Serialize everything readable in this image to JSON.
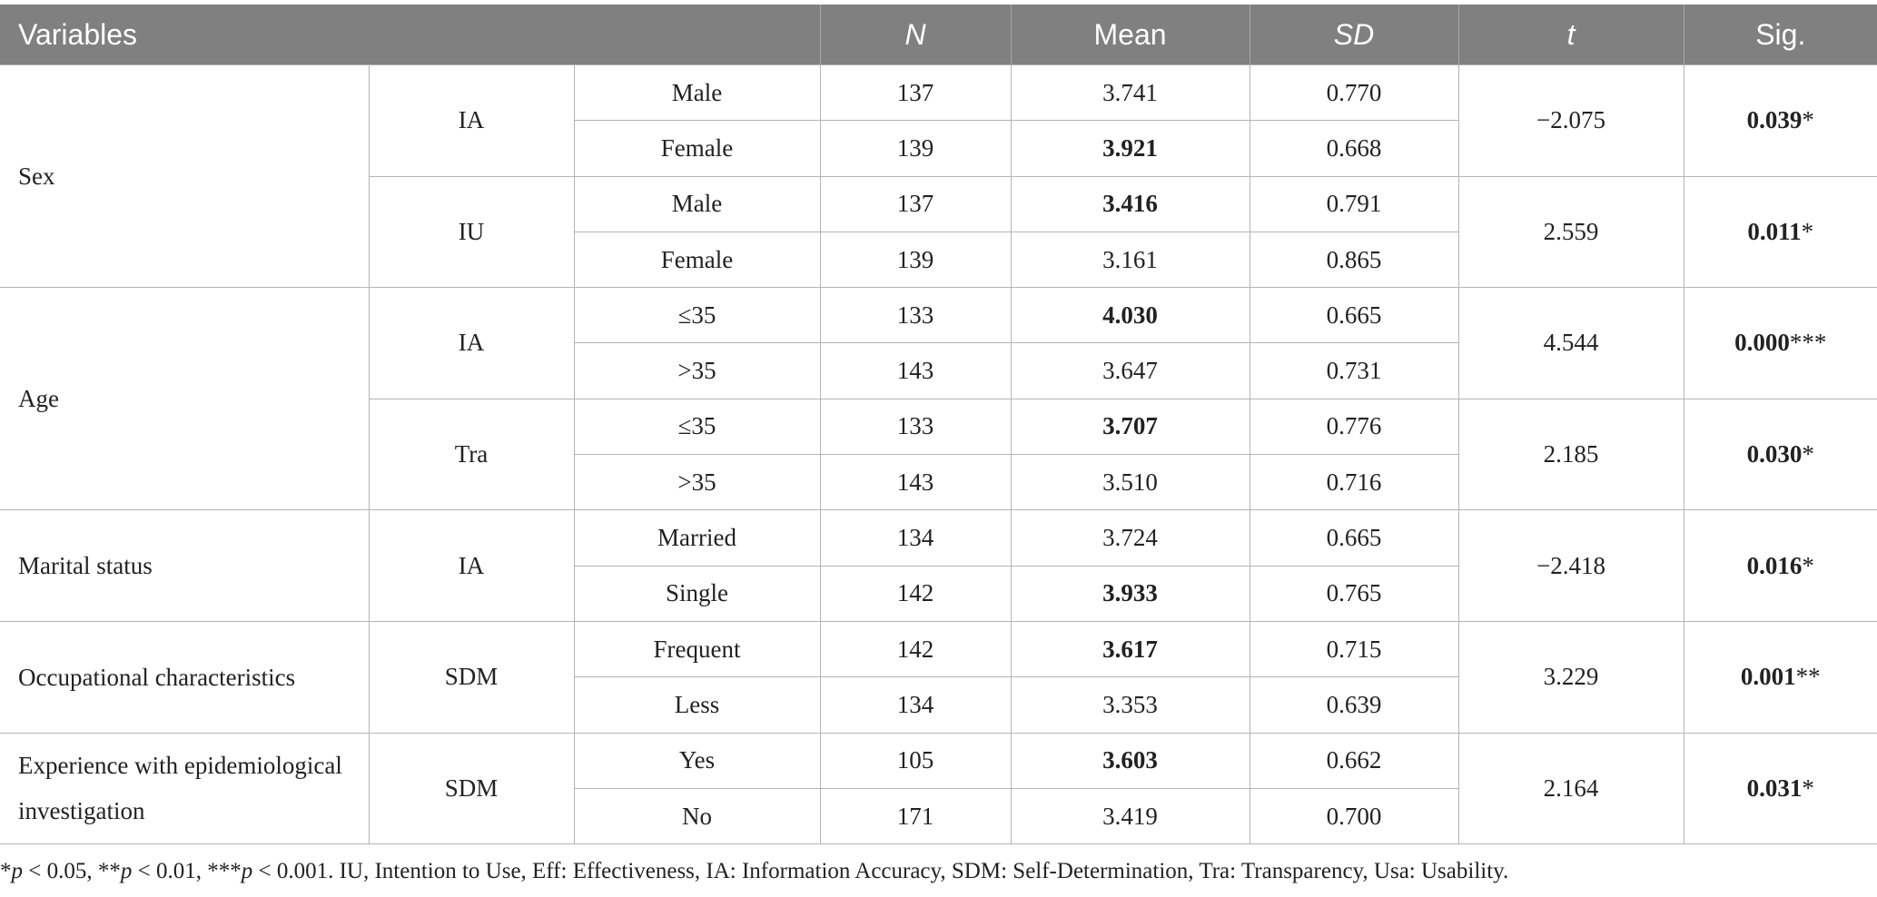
{
  "table": {
    "headers": {
      "variables": "Variables",
      "n": "N",
      "mean": "Mean",
      "sd": "SD",
      "t": "t",
      "sig": "Sig."
    },
    "groups": [
      {
        "variable": "Sex",
        "subgroups": [
          {
            "measure": "IA",
            "t": "−2.075",
            "sig_value": "0.039",
            "sig_stars": "*",
            "rows": [
              {
                "category": "Male",
                "n": "137",
                "mean": "3.741",
                "mean_bold": false,
                "sd": "0.770"
              },
              {
                "category": "Female",
                "n": "139",
                "mean": "3.921",
                "mean_bold": true,
                "sd": "0.668"
              }
            ]
          },
          {
            "measure": "IU",
            "t": "2.559",
            "sig_value": "0.011",
            "sig_stars": "*",
            "rows": [
              {
                "category": "Male",
                "n": "137",
                "mean": "3.416",
                "mean_bold": true,
                "sd": "0.791"
              },
              {
                "category": "Female",
                "n": "139",
                "mean": "3.161",
                "mean_bold": false,
                "sd": "0.865"
              }
            ]
          }
        ]
      },
      {
        "variable": "Age",
        "subgroups": [
          {
            "measure": "IA",
            "t": "4.544",
            "sig_value": "0.000",
            "sig_stars": "***",
            "rows": [
              {
                "category": "≤35",
                "n": "133",
                "mean": "4.030",
                "mean_bold": true,
                "sd": "0.665"
              },
              {
                "category": ">35",
                "n": "143",
                "mean": "3.647",
                "mean_bold": false,
                "sd": "0.731"
              }
            ]
          },
          {
            "measure": "Tra",
            "t": "2.185",
            "sig_value": "0.030",
            "sig_stars": "*",
            "rows": [
              {
                "category": "≤35",
                "n": "133",
                "mean": "3.707",
                "mean_bold": true,
                "sd": "0.776"
              },
              {
                "category": ">35",
                "n": "143",
                "mean": "3.510",
                "mean_bold": false,
                "sd": "0.716"
              }
            ]
          }
        ]
      },
      {
        "variable": "Marital status",
        "subgroups": [
          {
            "measure": "IA",
            "t": "−2.418",
            "sig_value": "0.016",
            "sig_stars": "*",
            "rows": [
              {
                "category": "Married",
                "n": "134",
                "mean": "3.724",
                "mean_bold": false,
                "sd": "0.665"
              },
              {
                "category": "Single",
                "n": "142",
                "mean": "3.933",
                "mean_bold": true,
                "sd": "0.765"
              }
            ]
          }
        ]
      },
      {
        "variable": "Occupational characteristics",
        "subgroups": [
          {
            "measure": "SDM",
            "t": "3.229",
            "sig_value": "0.001",
            "sig_stars": "**",
            "rows": [
              {
                "category": "Frequent",
                "n": "142",
                "mean": "3.617",
                "mean_bold": true,
                "sd": "0.715"
              },
              {
                "category": "Less",
                "n": "134",
                "mean": "3.353",
                "mean_bold": false,
                "sd": "0.639"
              }
            ]
          }
        ]
      },
      {
        "variable": "Experience with epidemiological investigation",
        "subgroups": [
          {
            "measure": "SDM",
            "t": "2.164",
            "sig_value": "0.031",
            "sig_stars": "*",
            "rows": [
              {
                "category": "Yes",
                "n": "105",
                "mean": "3.603",
                "mean_bold": true,
                "sd": "0.662"
              },
              {
                "category": "No",
                "n": "171",
                "mean": "3.419",
                "mean_bold": false,
                "sd": "0.700"
              }
            ]
          }
        ]
      }
    ]
  },
  "footnote": {
    "p1_star": "*",
    "p1_text": " < 0.05, ",
    "p2_star": "**",
    "p2_text": " < 0.01, ",
    "p3_star": "***",
    "p3_text": " < 0.001. ",
    "p_symbol": "p",
    "abbreviations": "IU, Intention to Use, Eff: Effectiveness, IA: Information Accuracy, SDM: Self-Determination, Tra: Transparency, Usa: Usability."
  },
  "colors": {
    "header_bg": "#808080",
    "header_text": "#ffffff",
    "grid_line": "#b4b4b4",
    "body_text": "#222222"
  }
}
